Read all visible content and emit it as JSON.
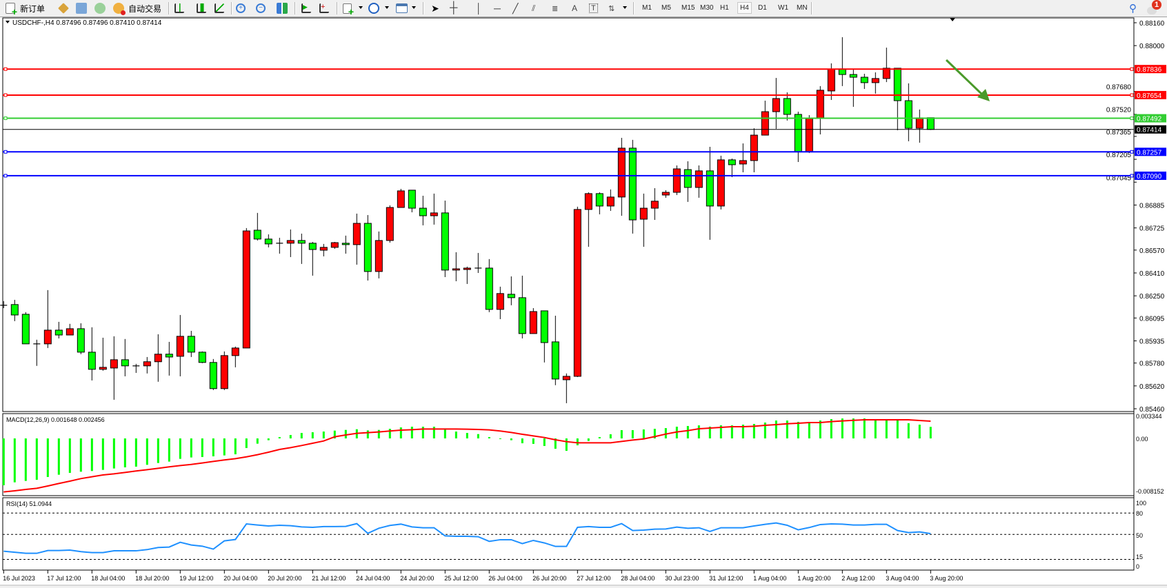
{
  "toolbar": {
    "new_order_label": "新订单",
    "auto_trading_label": "自动交易",
    "timeframes": [
      "M1",
      "M5",
      "M15",
      "M30",
      "H1",
      "H4",
      "D1",
      "W1",
      "MN"
    ],
    "active_timeframe": "H4",
    "notification_count": "1"
  },
  "chart": {
    "header": "USDCHF-,H4  0.87496 0.87496 0.87410 0.87414",
    "colors": {
      "bull": "#ff0000",
      "bear": "#00ff00",
      "outline": "#000000",
      "macd_hist": "#00ff00",
      "macd_signal": "#ff0000",
      "rsi": "#1e90ff",
      "arrow": "#4a9a2a"
    }
  },
  "chart_data": [
    {
      "type": "candlestick",
      "symbol": "USDCHF-",
      "timeframe": "H4",
      "ylim": [
        0.8546,
        0.8816
      ],
      "price_ticks": [
        "0.88160",
        "0.88000",
        "0.87680",
        "0.87520",
        "0.87365",
        "0.87205",
        "0.87045",
        "0.86885",
        "0.86725",
        "0.86570",
        "0.86410",
        "0.86250",
        "0.86095",
        "0.85935",
        "0.85780",
        "0.85620",
        "0.85460"
      ],
      "time_labels": [
        "16 Jul 2023",
        "17 Jul 12:00",
        "18 Jul 04:00",
        "18 Jul 20:00",
        "19 Jul 12:00",
        "20 Jul 04:00",
        "20 Jul 20:00",
        "21 Jul 12:00",
        "24 Jul 04:00",
        "24 Jul 20:00",
        "25 Jul 12:00",
        "26 Jul 04:00",
        "26 Jul 20:00",
        "27 Jul 12:00",
        "28 Jul 04:00",
        "30 Jul 23:00",
        "31 Jul 12:00",
        "1 Aug 04:00",
        "1 Aug 20:00",
        "2 Aug 12:00",
        "3 Aug 04:00",
        "3 Aug 20:00"
      ],
      "ohlc": [
        [
          0.86179,
          0.86213,
          0.86164,
          0.86184
        ],
        [
          0.86189,
          0.86222,
          0.86073,
          0.86116
        ],
        [
          0.86121,
          0.86136,
          0.85914,
          0.85914
        ],
        [
          0.85914,
          0.85943,
          0.8576,
          0.85914
        ],
        [
          0.85914,
          0.8629,
          0.85885,
          0.8601
        ],
        [
          0.8601,
          0.86068,
          0.85952,
          0.85976
        ],
        [
          0.85976,
          0.86054,
          0.85976,
          0.8602
        ],
        [
          0.8602,
          0.86058,
          0.85842,
          0.85856
        ],
        [
          0.85856,
          0.8603,
          0.85658,
          0.85736
        ],
        [
          0.85736,
          0.85957,
          0.85726,
          0.8575
        ],
        [
          0.85745,
          0.85967,
          0.85523,
          0.85803
        ],
        [
          0.85803,
          0.85948,
          0.85687,
          0.8576
        ],
        [
          0.8576,
          0.85774,
          0.85711,
          0.8576
        ],
        [
          0.8576,
          0.85822,
          0.85707,
          0.85789
        ],
        [
          0.85789,
          0.85981,
          0.85649,
          0.85842
        ],
        [
          0.85842,
          0.85928,
          0.85692,
          0.85822
        ],
        [
          0.85827,
          0.86116,
          0.85687,
          0.85967
        ],
        [
          0.85967,
          0.86005,
          0.85822,
          0.85856
        ],
        [
          0.85856,
          0.85861,
          0.85779,
          0.85784
        ],
        [
          0.85784,
          0.85808,
          0.85591,
          0.85601
        ],
        [
          0.85601,
          0.85861,
          0.85591,
          0.85832
        ],
        [
          0.85832,
          0.85895,
          0.8575,
          0.85885
        ],
        [
          0.85885,
          0.86724,
          0.85885,
          0.86704
        ],
        [
          0.86709,
          0.8683,
          0.86637,
          0.86647
        ],
        [
          0.86647,
          0.8668,
          0.86589,
          0.86613
        ],
        [
          0.86618,
          0.86656,
          0.86545,
          0.86618
        ],
        [
          0.86618,
          0.86714,
          0.86521,
          0.86637
        ],
        [
          0.86637,
          0.86685,
          0.86473,
          0.86618
        ],
        [
          0.86618,
          0.86627,
          0.86391,
          0.86574
        ],
        [
          0.86569,
          0.86613,
          0.86526,
          0.86589
        ],
        [
          0.86589,
          0.86627,
          0.86579,
          0.86622
        ],
        [
          0.86618,
          0.86671,
          0.86545,
          0.86608
        ],
        [
          0.86608,
          0.86825,
          0.86468,
          0.86757
        ],
        [
          0.86757,
          0.86815,
          0.86357,
          0.8642
        ],
        [
          0.8642,
          0.867,
          0.86372,
          0.86637
        ],
        [
          0.86637,
          0.86883,
          0.86622,
          0.86868
        ],
        [
          0.86868,
          0.86998,
          0.86868,
          0.86984
        ],
        [
          0.86989,
          0.86989,
          0.86834,
          0.86863
        ],
        [
          0.86863,
          0.8695,
          0.86743,
          0.8681
        ],
        [
          0.8681,
          0.86965,
          0.86748,
          0.8683
        ],
        [
          0.8683,
          0.86916,
          0.86381,
          0.8643
        ],
        [
          0.8643,
          0.86555,
          0.86352,
          0.86439
        ],
        [
          0.86434,
          0.86454,
          0.86333,
          0.86444
        ],
        [
          0.86444,
          0.8655,
          0.8641,
          0.86444
        ],
        [
          0.86444,
          0.86507,
          0.86136,
          0.86155
        ],
        [
          0.86155,
          0.86314,
          0.86087,
          0.86266
        ],
        [
          0.86261,
          0.86386,
          0.86184,
          0.86237
        ],
        [
          0.86237,
          0.86391,
          0.85952,
          0.85986
        ],
        [
          0.85986,
          0.86164,
          0.85986,
          0.8614
        ],
        [
          0.86145,
          0.86145,
          0.85784,
          0.85923
        ],
        [
          0.85928,
          0.86111,
          0.85625,
          0.85668
        ],
        [
          0.85663,
          0.85707,
          0.85499,
          0.85687
        ],
        [
          0.85687,
          0.86873,
          0.85682,
          0.86854
        ],
        [
          0.86854,
          0.86974,
          0.86593,
          0.86965
        ],
        [
          0.86965,
          0.86974,
          0.8682,
          0.86878
        ],
        [
          0.86878,
          0.86994,
          0.86844,
          0.86941
        ],
        [
          0.86941,
          0.87355,
          0.8681,
          0.87283
        ],
        [
          0.87283,
          0.87341,
          0.86685,
          0.86781
        ],
        [
          0.86786,
          0.86965,
          0.86593,
          0.86863
        ],
        [
          0.86863,
          0.87003,
          0.86781,
          0.86912
        ],
        [
          0.86955,
          0.86989,
          0.86936,
          0.86974
        ],
        [
          0.86974,
          0.87162,
          0.86955,
          0.87138
        ],
        [
          0.87133,
          0.87191,
          0.86907,
          0.87008
        ],
        [
          0.87008,
          0.87162,
          0.86936,
          0.87124
        ],
        [
          0.87124,
          0.87292,
          0.86642,
          0.86878
        ],
        [
          0.86878,
          0.8723,
          0.86854,
          0.87201
        ],
        [
          0.87201,
          0.8721,
          0.8708,
          0.87167
        ],
        [
          0.87172,
          0.87316,
          0.87114,
          0.87196
        ],
        [
          0.87196,
          0.87422,
          0.87114,
          0.87374
        ],
        [
          0.87374,
          0.87615,
          0.87374,
          0.87538
        ],
        [
          0.87538,
          0.87774,
          0.87418,
          0.8763
        ],
        [
          0.8763,
          0.87673,
          0.87476,
          0.87519
        ],
        [
          0.87519,
          0.87538,
          0.87186,
          0.87259
        ],
        [
          0.87259,
          0.87514,
          0.87249,
          0.8749
        ],
        [
          0.8749,
          0.87717,
          0.87379,
          0.87688
        ],
        [
          0.87683,
          0.87876,
          0.8762,
          0.87837
        ],
        [
          0.87837,
          0.88059,
          0.87717,
          0.87798
        ],
        [
          0.87798,
          0.87832,
          0.87572,
          0.87779
        ],
        [
          0.87779,
          0.87803,
          0.87697,
          0.87741
        ],
        [
          0.87741,
          0.87813,
          0.87664,
          0.8777
        ],
        [
          0.8777,
          0.87986,
          0.87745,
          0.87842
        ],
        [
          0.87842,
          0.87842,
          0.87408,
          0.87615
        ],
        [
          0.87615,
          0.87736,
          0.87331,
          0.87422
        ],
        [
          0.87422,
          0.87553,
          0.87321,
          0.87495
        ],
        [
          0.87496,
          0.87496,
          0.8741,
          0.87414
        ]
      ],
      "horizontal_lines": [
        {
          "price": 0.87836,
          "label": "0.87836",
          "color": "#ff0000"
        },
        {
          "price": 0.87654,
          "label": "0.87654",
          "color": "#ff0000"
        },
        {
          "price": 0.87492,
          "label": "0.87492",
          "color": "#32cd32"
        },
        {
          "price": 0.87257,
          "label": "0.87257",
          "color": "#0000ff"
        },
        {
          "price": 0.8709,
          "label": "0.87090",
          "color": "#0000ff"
        }
      ],
      "current_price": {
        "price": 0.87414,
        "label": "0.87414"
      },
      "annotation": "downward green arrow near 3 Aug"
    },
    {
      "type": "bar+line",
      "title": "MACD(12,26,9) 0.001648 0.002456",
      "ylim": [
        -0.008152,
        0.003344
      ],
      "tick_labels": [
        "0.003344",
        "0.00",
        "-0.008152"
      ],
      "histogram": [
        -0.00667,
        -0.00625,
        -0.00605,
        -0.00589,
        -0.00549,
        -0.00517,
        -0.00491,
        -0.00474,
        -0.00464,
        -0.00448,
        -0.00428,
        -0.00412,
        -0.00402,
        -0.00376,
        -0.0035,
        -0.0033,
        -0.00291,
        -0.00271,
        -0.00265,
        -0.00255,
        -0.00242,
        -0.00226,
        -0.00137,
        -0.00075,
        -0.00026,
        0.0002,
        0.00049,
        0.00078,
        0.00088,
        0.00098,
        0.00111,
        0.00121,
        0.00131,
        0.00114,
        0.00121,
        0.00137,
        0.00157,
        0.00167,
        0.00167,
        0.00167,
        0.00137,
        0.00098,
        0.00078,
        0.00062,
        0.0002,
        -3e-05,
        -0.00026,
        -0.00069,
        -0.00078,
        -0.00108,
        -0.00147,
        -0.00177,
        -0.00098,
        -0.00036,
        0.0002,
        0.00059,
        0.00118,
        0.00118,
        0.00128,
        0.00137,
        0.00147,
        0.00167,
        0.00177,
        0.00186,
        0.00167,
        0.00186,
        0.00186,
        0.00196,
        0.00206,
        0.00226,
        0.00255,
        0.00255,
        0.00235,
        0.00235,
        0.00255,
        0.00275,
        0.00284,
        0.00284,
        0.00284,
        0.00265,
        0.00265,
        0.00265,
        0.00216,
        0.00196,
        0.001648
      ],
      "signal": [
        -0.00762,
        -0.00746,
        -0.00726,
        -0.0071,
        -0.00677,
        -0.00641,
        -0.00608,
        -0.00572,
        -0.00546,
        -0.0052,
        -0.00504,
        -0.00484,
        -0.00464,
        -0.00445,
        -0.00425,
        -0.00405,
        -0.00386,
        -0.0037,
        -0.0035,
        -0.00327,
        -0.00307,
        -0.00288,
        -0.00262,
        -0.00232,
        -0.00196,
        -0.00157,
        -0.00131,
        -0.00101,
        -0.00069,
        -0.00036,
        0.00023,
        0.00049,
        0.00072,
        0.00082,
        0.00092,
        0.00105,
        0.00118,
        0.00124,
        0.00134,
        0.00134,
        0.00134,
        0.00134,
        0.00131,
        0.00128,
        0.00121,
        0.00105,
        0.00085,
        0.00059,
        0.00036,
        0.00013,
        -0.0002,
        -0.00046,
        -0.00062,
        -0.00062,
        -0.00062,
        -0.00062,
        -0.00043,
        -0.00023,
        -7e-05,
        0.00026,
        0.00062,
        0.00092,
        0.00111,
        0.00137,
        0.00147,
        0.00157,
        0.00167,
        0.00167,
        0.00173,
        0.00186,
        0.00196,
        0.00209,
        0.00216,
        0.00226,
        0.00226,
        0.00239,
        0.00249,
        0.00258,
        0.00265,
        0.00265,
        0.00265,
        0.00265,
        0.00265,
        0.00255,
        0.002456
      ]
    },
    {
      "type": "line",
      "title": "RSI(14) 51.0944",
      "ylim": [
        0,
        100
      ],
      "levels": [
        80,
        50,
        15
      ],
      "tick_labels": [
        "100",
        "80",
        "50",
        "15",
        "0"
      ],
      "values": [
        26.5,
        25,
        23.5,
        23.5,
        27.4,
        27.4,
        28,
        25.8,
        24.5,
        24.5,
        27,
        27,
        27,
        28.7,
        31.6,
        32.3,
        39,
        35.2,
        33.5,
        29.4,
        41,
        42.9,
        64.8,
        63.2,
        61.9,
        62.9,
        62.3,
        60.6,
        60,
        61,
        61,
        61.3,
        65.2,
        51.6,
        58.7,
        62.6,
        64.5,
        60.6,
        59.4,
        59.4,
        48,
        47.4,
        47.4,
        46.8,
        40.3,
        42.6,
        42.6,
        37.1,
        41.6,
        38.1,
        33.2,
        33.2,
        60,
        61,
        60,
        60,
        65.2,
        55.5,
        56.1,
        57.4,
        57.7,
        60.3,
        58.7,
        59.4,
        54.2,
        59.4,
        59.4,
        59.4,
        61.9,
        64.2,
        66.1,
        62.9,
        56.5,
        59.7,
        63.9,
        64.8,
        64.5,
        63.2,
        63.2,
        64.2,
        64.2,
        55.5,
        52.6,
        53.5,
        51.0944
      ]
    }
  ]
}
